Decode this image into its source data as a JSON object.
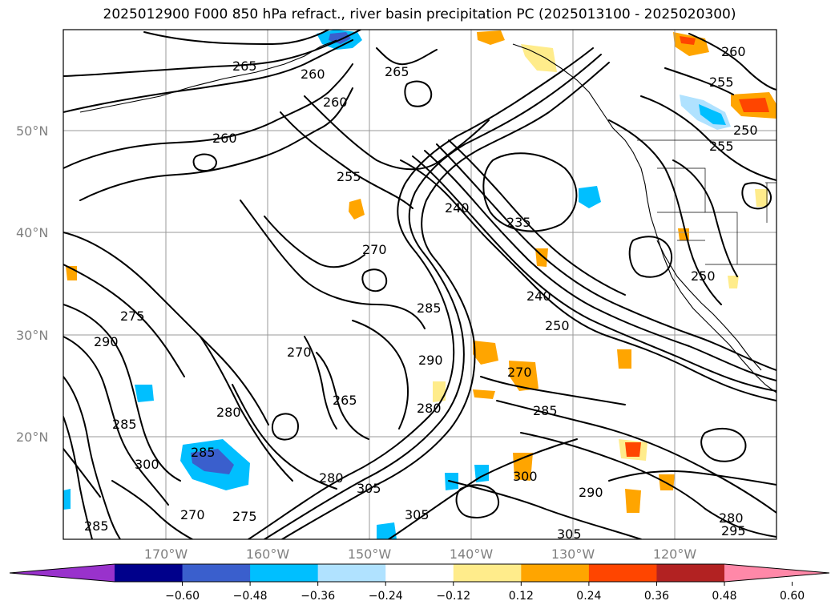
{
  "title": "2025012900 F000 850 hPa refract., river basin precipitation PC (2025013100 - 2025020300)",
  "lat_labels": [
    "50°N",
    "40°N",
    "30°N",
    "20°N"
  ],
  "lon_labels": [
    "170°W",
    "160°W",
    "150°W",
    "140°W",
    "130°W",
    "120°W"
  ],
  "colorbar": {
    "colors": [
      "#9932cc",
      "#00008b",
      "#3a5fcd",
      "#00bfff",
      "#b0e2ff",
      "#ffffff",
      "#ffec8b",
      "#ffa500",
      "#ff4500",
      "#b22222",
      "#ff88a8"
    ],
    "ticks": [
      "−0.60",
      "−0.48",
      "−0.36",
      "−0.24",
      "−0.12",
      "0.12",
      "0.24",
      "0.36",
      "0.48",
      "0.60"
    ]
  },
  "contour_labels": [
    "265",
    "260",
    "265",
    "260",
    "260",
    "255",
    "255",
    "260",
    "255",
    "250",
    "240",
    "235",
    "270",
    "250",
    "240",
    "250",
    "275",
    "290",
    "270",
    "285",
    "290",
    "270",
    "280",
    "265",
    "280",
    "285",
    "285",
    "300",
    "285",
    "270",
    "275",
    "285",
    "280",
    "305",
    "300",
    "305",
    "290",
    "305",
    "280",
    "295"
  ],
  "map_features": {
    "positive_anomaly_color": "orange",
    "negative_anomaly_color": "blue"
  }
}
